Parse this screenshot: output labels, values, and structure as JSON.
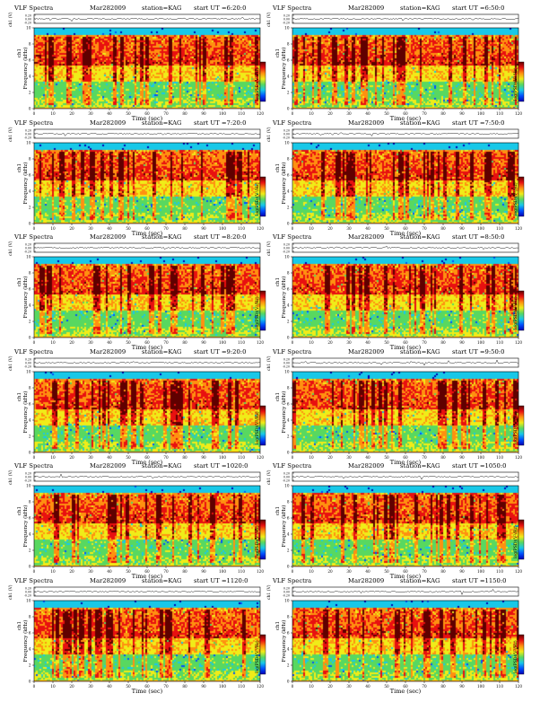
{
  "chart_data": [
    {
      "type": "heatmap",
      "col": 0,
      "row": 0,
      "title_left": "VLF Spectra",
      "date": "Mar282009",
      "station": "station=KAG",
      "start": "start UT =6:20:0"
    },
    {
      "type": "heatmap",
      "col": 1,
      "row": 0,
      "title_left": "VLF Spectra",
      "date": "Mar282009",
      "station": "station=KAG",
      "start": "start UT =6:50:0"
    },
    {
      "type": "heatmap",
      "col": 0,
      "row": 1,
      "title_left": "VLF Spectra",
      "date": "Mar282009",
      "station": "station=KAG",
      "start": "start UT =7:20:0"
    },
    {
      "type": "heatmap",
      "col": 1,
      "row": 1,
      "title_left": "VLF Spectra",
      "date": "Mar282009",
      "station": "station=KAG",
      "start": "start UT =7:50:0"
    },
    {
      "type": "heatmap",
      "col": 0,
      "row": 2,
      "title_left": "VLF Spectra",
      "date": "Mar282009",
      "station": "station=KAG",
      "start": "start UT =8:20:0"
    },
    {
      "type": "heatmap",
      "col": 1,
      "row": 2,
      "title_left": "VLF Spectra",
      "date": "Mar282009",
      "station": "station=KAG",
      "start": "start UT =8:50:0"
    },
    {
      "type": "heatmap",
      "col": 0,
      "row": 3,
      "title_left": "VLF Spectra",
      "date": "Mar282009",
      "station": "station=KAG",
      "start": "start UT =9:20:0"
    },
    {
      "type": "heatmap",
      "col": 1,
      "row": 3,
      "title_left": "VLF Spectra",
      "date": "Mar282009",
      "station": "station=KAG",
      "start": "start UT =9:50:0"
    },
    {
      "type": "heatmap",
      "col": 0,
      "row": 4,
      "title_left": "VLF Spectra",
      "date": "Mar282009",
      "station": "station=KAG",
      "start": "start UT =1020:0"
    },
    {
      "type": "heatmap",
      "col": 1,
      "row": 4,
      "title_left": "VLF Spectra",
      "date": "Mar282009",
      "station": "station=KAG",
      "start": "start UT =1050:0"
    },
    {
      "type": "heatmap",
      "col": 0,
      "row": 5,
      "title_left": "VLF Spectra",
      "date": "Mar282009",
      "station": "station=KAG",
      "start": "start UT =1120:0"
    },
    {
      "type": "heatmap",
      "col": 1,
      "row": 5,
      "title_left": "VLF Spectra",
      "date": "Mar282009",
      "station": "station=KAG",
      "start": "start UT =1150:0"
    }
  ],
  "common": {
    "xlabel": "Time (sec)",
    "ylabel_spec": "Frequency (kHz)",
    "ylabel_ch": "ch1 (V)",
    "ylabel_ch_top": "ch1",
    "colorbar_label": "log(PSD)(V²/Hz)",
    "xlim": [
      0,
      120
    ],
    "xticks": [
      "0",
      "10",
      "20",
      "30",
      "40",
      "50",
      "60",
      "70",
      "80",
      "90",
      "100",
      "110",
      "120"
    ],
    "ylim_spec": [
      0,
      10
    ],
    "yticks_spec": [
      "0",
      "2",
      "4",
      "6",
      "8",
      "10"
    ],
    "yticks_ch": [
      "0.20",
      "0.00",
      "-0.20"
    ],
    "colors": {
      "low": "#0000b4",
      "blue": "#0050ff",
      "cyan": "#18c8e8",
      "green": "#58d860",
      "yellow": "#f0ec18",
      "orange": "#ff9010",
      "red": "#e81010",
      "dark": "#600000"
    }
  }
}
